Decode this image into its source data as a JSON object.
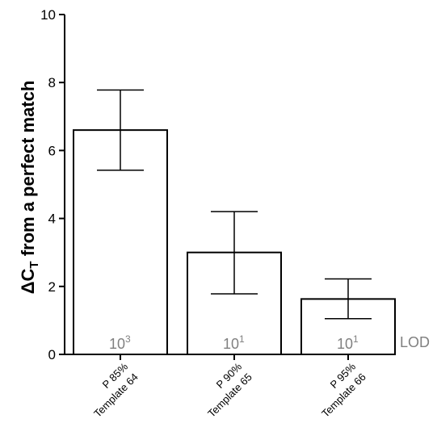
{
  "chart_data": {
    "type": "bar",
    "categories": [
      {
        "line1": "P 85%",
        "line2": "Template 64"
      },
      {
        "line1": "P 90%",
        "line2": "Template 65"
      },
      {
        "line1": "P 95%",
        "line2": "Template 66"
      }
    ],
    "values": [
      6.6,
      3.0,
      1.63
    ],
    "error_low": [
      5.42,
      1.78,
      1.05
    ],
    "error_high": [
      7.78,
      4.2,
      2.22
    ],
    "bar_annotations": [
      {
        "base": "10",
        "exp": "3"
      },
      {
        "base": "10",
        "exp": "1"
      },
      {
        "base": "10",
        "exp": "1"
      }
    ],
    "ylabel": {
      "prefix": "ΔC",
      "sub": "T",
      "suffix": " from a perfect match"
    },
    "ylim": [
      0,
      10
    ],
    "yticks": [
      "0",
      "2",
      "4",
      "6",
      "8",
      "10"
    ],
    "side_label": "LOD",
    "grid": false,
    "colors": {
      "bar_fill": "#ffffff",
      "bar_stroke": "#000000",
      "annotation": "#808080"
    }
  }
}
